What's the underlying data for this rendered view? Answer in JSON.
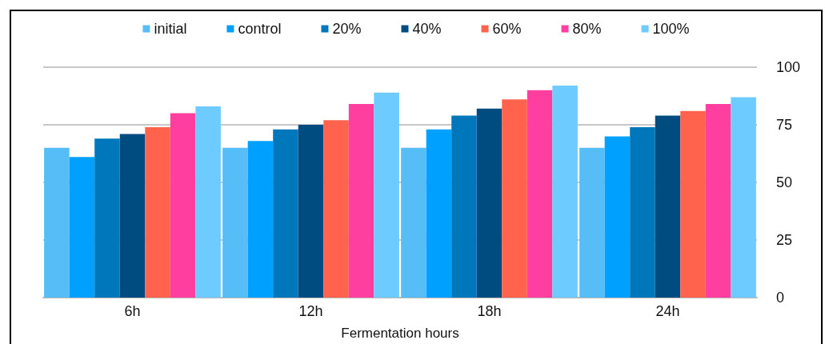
{
  "chart_data": {
    "type": "bar",
    "xlabel": "Fermentation hours",
    "categories": [
      "6h",
      "12h",
      "18h",
      "24h"
    ],
    "series": [
      {
        "name": "initial",
        "color": "#56bdf7",
        "values": [
          65,
          65,
          65,
          65
        ]
      },
      {
        "name": "control",
        "color": "#00a0ff",
        "values": [
          61,
          68,
          73,
          70
        ]
      },
      {
        "name": "20%",
        "color": "#0077bb",
        "values": [
          69,
          73,
          79,
          74
        ]
      },
      {
        "name": "40%",
        "color": "#004c80",
        "values": [
          71,
          75,
          82,
          79
        ]
      },
      {
        "name": "60%",
        "color": "#ff634d",
        "values": [
          74,
          77,
          86,
          81
        ]
      },
      {
        "name": "80%",
        "color": "#ff3fa0",
        "values": [
          80,
          84,
          90,
          84
        ]
      },
      {
        "name": "100%",
        "color": "#6dcbff",
        "values": [
          83,
          89,
          92,
          87
        ]
      }
    ],
    "ylim": [
      0,
      100
    ],
    "yticks": [
      0,
      25,
      50,
      75,
      100
    ],
    "grid": "y",
    "legend": "top"
  }
}
